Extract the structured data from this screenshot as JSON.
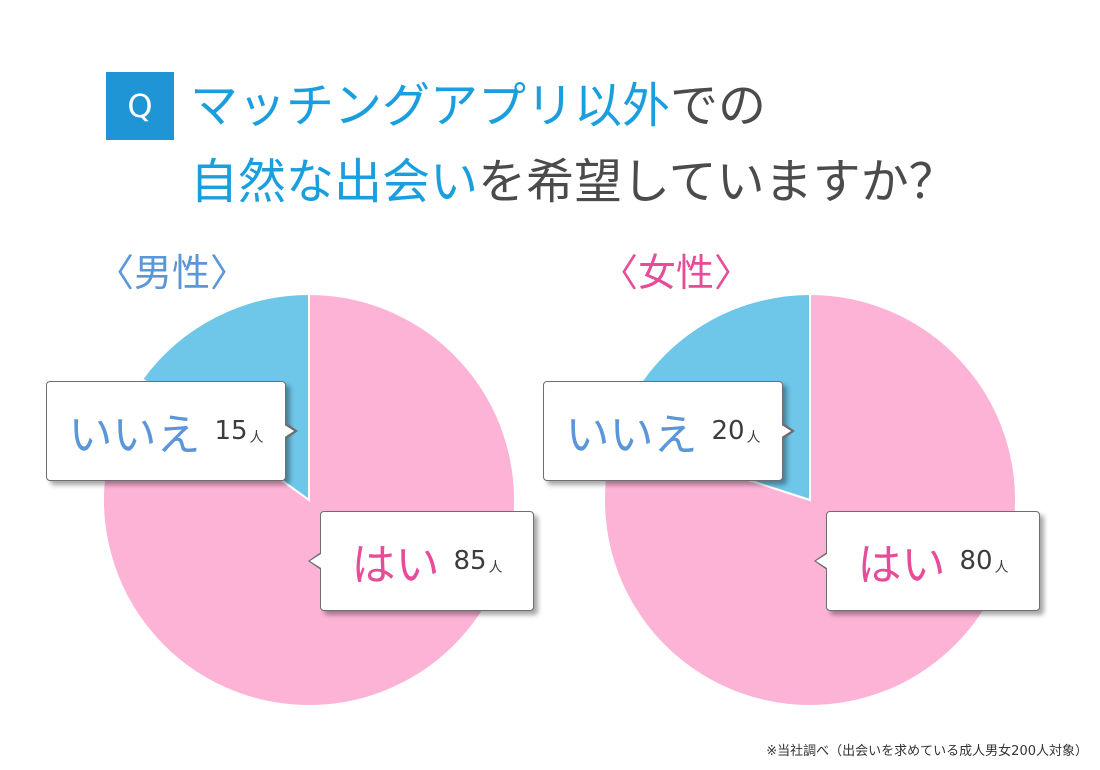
{
  "question": {
    "badge": "Q",
    "line1_highlight": "マッチングアプリ以外",
    "line1_rest": "での",
    "line2_highlight": "自然な出会い",
    "line2_rest": "を希望していますか？"
  },
  "footnote": "※当社調べ（出会いを求めている成人男女200人対象）",
  "colors": {
    "accent": "#1f95d6",
    "yes": "#fdb3d6",
    "no": "#6ec6e9",
    "male": "#5a96d8",
    "female": "#e64c97"
  },
  "chart_data": [
    {
      "type": "pie",
      "title": "〈男性〉",
      "unit": "人",
      "slices": [
        {
          "label": "はい",
          "value": 85,
          "color": "#fdb3d6"
        },
        {
          "label": "いいえ",
          "value": 15,
          "color": "#6ec6e9"
        }
      ]
    },
    {
      "type": "pie",
      "title": "〈女性〉",
      "unit": "人",
      "slices": [
        {
          "label": "はい",
          "value": 80,
          "color": "#fdb3d6"
        },
        {
          "label": "いいえ",
          "value": 20,
          "color": "#6ec6e9"
        }
      ]
    }
  ]
}
